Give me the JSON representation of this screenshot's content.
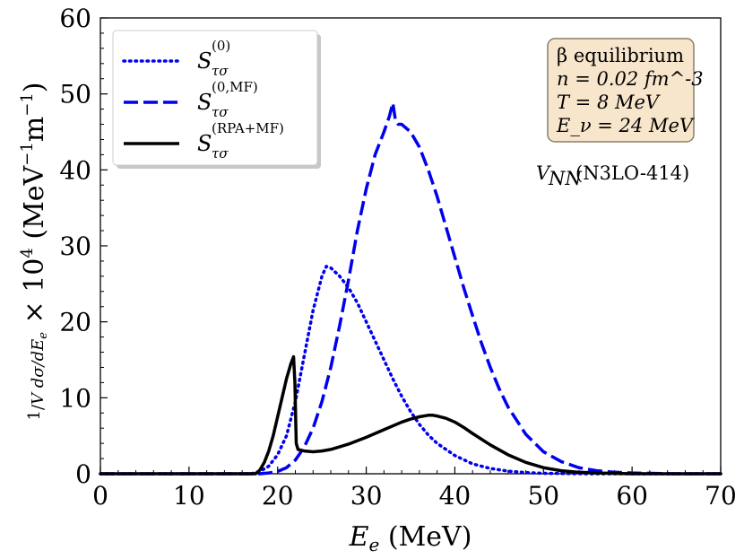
{
  "chart_data": {
    "type": "line",
    "xlabel": "E_e (MeV)",
    "ylabel": "(1/V) dσ/dE_e × 10^4 (MeV^-1 m^-1)",
    "xlim": [
      0,
      70
    ],
    "ylim": [
      0,
      60
    ],
    "xticks": [
      0,
      10,
      20,
      30,
      40,
      50,
      60,
      70
    ],
    "yticks": [
      0,
      10,
      20,
      30,
      40,
      50,
      60
    ],
    "xtick_labels": [
      "0",
      "10",
      "20",
      "30",
      "40",
      "50",
      "60",
      "70"
    ],
    "ytick_labels": [
      "0",
      "10",
      "20",
      "30",
      "40",
      "50",
      "60"
    ],
    "series": [
      {
        "name": "S_τσ^(0)",
        "label_main": "S",
        "label_sup": "(0)",
        "label_sub": "τσ",
        "color": "#0000ee",
        "style": "dotted",
        "x": [
          0,
          17,
          18,
          19,
          20,
          21,
          22,
          23,
          24,
          25,
          25.5,
          26,
          27,
          28,
          29,
          30,
          31,
          32,
          33,
          34,
          35,
          36,
          37,
          38,
          40,
          42,
          44,
          46,
          48,
          50,
          55,
          70
        ],
        "y": [
          0,
          0,
          0.3,
          1.0,
          2.5,
          5.0,
          9.5,
          15.5,
          21.5,
          26.0,
          27.3,
          27.1,
          26.0,
          24.5,
          22.5,
          20.0,
          17.5,
          15.0,
          12.5,
          10.2,
          8.2,
          6.5,
          5.1,
          4.0,
          2.4,
          1.3,
          0.7,
          0.35,
          0.15,
          0.06,
          0,
          0
        ]
      },
      {
        "name": "S_τσ^(0,MF)",
        "label_main": "S",
        "label_sup": "(0,MF)",
        "label_sub": "τσ",
        "color": "#0000ee",
        "style": "dashed",
        "x": [
          0,
          18,
          19,
          20,
          21,
          22,
          23,
          24,
          25,
          26,
          27,
          28,
          29,
          30,
          31,
          32,
          32.6,
          33.0,
          33.3,
          33.6,
          34,
          35,
          36,
          37,
          38,
          39,
          40,
          41,
          42,
          43,
          44,
          45,
          46,
          48,
          50,
          52,
          54,
          56,
          58,
          60,
          65,
          70
        ],
        "y": [
          0,
          0,
          0.1,
          0.3,
          0.8,
          1.8,
          3.5,
          6.0,
          9.5,
          14.0,
          19.5,
          25.5,
          32.0,
          37.5,
          42.0,
          45.0,
          47.0,
          48.8,
          46.5,
          46.0,
          46.0,
          45.0,
          43.0,
          40.0,
          36.5,
          32.5,
          28.5,
          24.5,
          20.8,
          17.2,
          14.0,
          11.2,
          8.8,
          5.2,
          2.9,
          1.6,
          0.8,
          0.4,
          0.2,
          0.1,
          0,
          0
        ]
      },
      {
        "name": "S_τσ^(RPA+MF)",
        "label_main": "S",
        "label_sup": "(RPA+MF)",
        "label_sub": "τσ",
        "color": "#000000",
        "style": "solid",
        "x": [
          0,
          17.5,
          18,
          18.5,
          19,
          19.5,
          20,
          20.5,
          21,
          21.5,
          21.8,
          21.95,
          22.1,
          22.3,
          23,
          24,
          25,
          26,
          28,
          30,
          32,
          34,
          35,
          36,
          37,
          37.5,
          38,
          39,
          40,
          41,
          42,
          44,
          46,
          48,
          50,
          52,
          54,
          56,
          60,
          70
        ],
        "y": [
          0,
          0,
          0.5,
          1.5,
          3.0,
          5.0,
          7.5,
          10.0,
          12.5,
          14.5,
          15.4,
          12.0,
          4.0,
          3.2,
          3.0,
          2.9,
          3.0,
          3.2,
          3.9,
          4.8,
          5.8,
          6.8,
          7.2,
          7.5,
          7.7,
          7.7,
          7.6,
          7.3,
          6.8,
          6.1,
          5.3,
          3.8,
          2.5,
          1.5,
          0.8,
          0.4,
          0.2,
          0.1,
          0,
          0
        ]
      }
    ],
    "legend_position": "top-left",
    "annotations": {
      "info_box": [
        "β equilibrium",
        "n = 0.02 fm^-3",
        "T = 8 MeV",
        "E_ν = 24 MeV"
      ],
      "potential_main": "V",
      "potential_sub": "NN",
      "potential_rest": "(N3LO-414)"
    },
    "colors": {
      "series_blue": "#0000ee",
      "series_black": "#000000",
      "info_box_fill": "#f7e6cc",
      "info_box_edge": "#8a7f6a",
      "legend_edge": "#bbbbbb"
    }
  }
}
